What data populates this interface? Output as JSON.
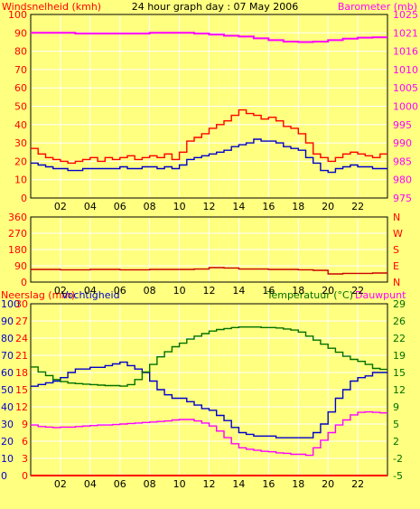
{
  "header": {
    "left_title": "Windsnelheid (kmh)",
    "center_title": "24 hour graph day : 07 May 2006",
    "right_title": "Barometer (mb)"
  },
  "bottom_header": {
    "left_title_a": "Neerslag (mm)",
    "left_title_b": "Vochtigheid",
    "right_title_a": "Temperatuur (°C)",
    "right_title_b": "Dauwpunt"
  },
  "colors": {
    "background": "#ffff80",
    "wind_gust": "#ff0000",
    "wind_avg": "#0000cc",
    "barometer": "#ff00ff",
    "wind_dir": "#cc0000",
    "rain": "#ff0000",
    "humidity": "#0000cc",
    "temperature": "#007000",
    "dewpoint": "#ff00ff",
    "grid": "#ffffff"
  },
  "chart_data": [
    {
      "type": "line",
      "panel": "wind-barometer",
      "x_ticks": [
        "02",
        "04",
        "06",
        "08",
        "10",
        "12",
        "14",
        "16",
        "18",
        "20",
        "22"
      ],
      "xlim": [
        0,
        24
      ],
      "y_left_ticks": [
        "0",
        "10",
        "20",
        "30",
        "40",
        "50",
        "60",
        "70",
        "80",
        "90",
        "100"
      ],
      "ylim_left": [
        0,
        100
      ],
      "y_right_ticks": [
        "975",
        "980",
        "985",
        "990",
        "995",
        "1000",
        "1005",
        "1010",
        "1016",
        "1021",
        "1025"
      ],
      "ylim_right": [
        975,
        1025
      ],
      "series": [
        {
          "key": "gust",
          "x": [
            0,
            0.5,
            1,
            1.5,
            2,
            2.5,
            3,
            3.5,
            4,
            4.5,
            5,
            5.5,
            6,
            6.5,
            7,
            7.5,
            8,
            8.5,
            9,
            9.5,
            10,
            10.5,
            11,
            11.5,
            12,
            12.5,
            13,
            13.5,
            14,
            14.5,
            15,
            15.5,
            16,
            16.5,
            17,
            17.5,
            18,
            18.5,
            19,
            19.5,
            20,
            20.5,
            21,
            21.5,
            22,
            22.5,
            23,
            23.5
          ],
          "values": [
            27,
            24,
            22,
            21,
            20,
            19,
            20,
            21,
            22,
            20,
            22,
            21,
            22,
            23,
            21,
            22,
            23,
            22,
            24,
            21,
            25,
            31,
            33,
            35,
            38,
            40,
            42,
            45,
            48,
            46,
            45,
            43,
            44,
            42,
            39,
            38,
            35,
            30,
            24,
            22,
            20,
            22,
            24,
            25,
            24,
            23,
            22,
            24
          ]
        },
        {
          "key": "avg",
          "x": [
            0,
            0.5,
            1,
            1.5,
            2,
            2.5,
            3,
            3.5,
            4,
            4.5,
            5,
            5.5,
            6,
            6.5,
            7,
            7.5,
            8,
            8.5,
            9,
            9.5,
            10,
            10.5,
            11,
            11.5,
            12,
            12.5,
            13,
            13.5,
            14,
            14.5,
            15,
            15.5,
            16,
            16.5,
            17,
            17.5,
            18,
            18.5,
            19,
            19.5,
            20,
            20.5,
            21,
            21.5,
            22,
            22.5,
            23,
            23.5
          ],
          "values": [
            19,
            18,
            17,
            16,
            16,
            15,
            15,
            16,
            16,
            16,
            16,
            16,
            17,
            16,
            16,
            17,
            17,
            16,
            17,
            16,
            18,
            21,
            22,
            23,
            24,
            25,
            26,
            28,
            29,
            30,
            32,
            31,
            31,
            30,
            28,
            27,
            26,
            22,
            19,
            15,
            14,
            16,
            17,
            18,
            17,
            17,
            16,
            16
          ]
        },
        {
          "key": "barometer",
          "x": [
            0,
            1,
            2,
            3,
            4,
            5,
            6,
            7,
            8,
            9,
            10,
            11,
            12,
            13,
            14,
            15,
            16,
            17,
            18,
            19,
            20,
            21,
            22,
            23,
            23.5
          ],
          "values": [
            1020,
            1020,
            1020,
            1019.8,
            1019.8,
            1019.8,
            1019.8,
            1019.8,
            1020,
            1020,
            1020,
            1019.8,
            1019.5,
            1019.2,
            1019,
            1018.5,
            1018,
            1017.6,
            1017.5,
            1017.6,
            1018,
            1018.4,
            1018.7,
            1018.8,
            1018.8
          ]
        }
      ]
    },
    {
      "type": "line",
      "panel": "wind-direction",
      "x_ticks": [
        "02",
        "04",
        "06",
        "08",
        "10",
        "12",
        "14",
        "16",
        "18",
        "20",
        "22"
      ],
      "xlim": [
        0,
        24
      ],
      "y_left_ticks": [
        "0",
        "90",
        "180",
        "270",
        "360"
      ],
      "ylim_left": [
        0,
        360
      ],
      "y_right_ticks": [
        "N",
        "E",
        "S",
        "W",
        "N"
      ],
      "series": [
        {
          "key": "direction",
          "x": [
            0,
            2,
            4,
            6,
            8,
            10,
            11,
            12,
            13,
            14,
            16,
            18,
            19,
            20,
            21,
            22,
            23,
            23.5
          ],
          "values": [
            70,
            68,
            70,
            68,
            70,
            70,
            72,
            80,
            78,
            72,
            70,
            68,
            65,
            45,
            48,
            48,
            50,
            50
          ]
        }
      ]
    },
    {
      "type": "line",
      "panel": "rain-humidity-temperature",
      "x_ticks": [
        "02",
        "04",
        "06",
        "08",
        "10",
        "12",
        "14",
        "16",
        "18",
        "20",
        "22"
      ],
      "xlim": [
        0,
        24
      ],
      "y_left_ticks": [
        "0",
        "10",
        "20",
        "30",
        "40",
        "50",
        "60",
        "70",
        "80",
        "90",
        "100"
      ],
      "y_left2_ticks": [
        "0",
        "3",
        "6",
        "9",
        "12",
        "15",
        "18",
        "21",
        "24",
        "27",
        "30"
      ],
      "ylim_left": [
        0,
        100
      ],
      "y_right_ticks": [
        "-5",
        "-2",
        "2",
        "5",
        "9",
        "12",
        "15",
        "19",
        "22",
        "26",
        "29"
      ],
      "ylim_right": [
        -5,
        29
      ],
      "series": [
        {
          "key": "rain",
          "x": [
            0,
            23.5
          ],
          "values": [
            0,
            0
          ]
        },
        {
          "key": "humidity",
          "x": [
            0,
            0.5,
            1,
            1.5,
            2,
            2.5,
            3,
            3.5,
            4,
            4.5,
            5,
            5.5,
            6,
            6.5,
            7,
            7.5,
            8,
            8.5,
            9,
            9.5,
            10,
            10.5,
            11,
            11.5,
            12,
            12.5,
            13,
            13.5,
            14,
            14.5,
            15,
            15.5,
            16,
            16.5,
            17,
            17.5,
            18,
            18.5,
            19,
            19.5,
            20,
            20.5,
            21,
            21.5,
            22,
            22.5,
            23,
            23.5
          ],
          "values": [
            52,
            53,
            54,
            55,
            57,
            60,
            62,
            62,
            63,
            63,
            64,
            65,
            66,
            64,
            62,
            60,
            55,
            50,
            47,
            45,
            45,
            43,
            41,
            39,
            38,
            35,
            32,
            28,
            25,
            24,
            23,
            23,
            23,
            22,
            22,
            22,
            22,
            22,
            25,
            30,
            37,
            45,
            50,
            55,
            57,
            58,
            60,
            60
          ]
        },
        {
          "key": "temperature",
          "x": [
            0,
            0.5,
            1,
            1.5,
            2,
            2.5,
            3,
            3.5,
            4,
            4.5,
            5,
            5.5,
            6,
            6.5,
            7,
            7.5,
            8,
            8.5,
            9,
            9.5,
            10,
            10.5,
            11,
            11.5,
            12,
            12.5,
            13,
            13.5,
            14,
            14.5,
            15,
            15.5,
            16,
            16.5,
            17,
            17.5,
            18,
            18.5,
            19,
            19.5,
            20,
            20.5,
            21,
            21.5,
            22,
            22.5,
            23,
            23.5
          ],
          "values": [
            16.5,
            15.5,
            14.8,
            14,
            13.6,
            13.3,
            13.2,
            13.1,
            13,
            12.9,
            12.8,
            12.8,
            12.7,
            13,
            14,
            15.5,
            17,
            18.5,
            19.5,
            20.5,
            21.2,
            22,
            22.6,
            23.1,
            23.6,
            23.9,
            24.1,
            24.3,
            24.4,
            24.4,
            24.4,
            24.3,
            24.3,
            24.2,
            24,
            23.8,
            23.4,
            22.6,
            21.8,
            21,
            20.2,
            19.4,
            18.6,
            18,
            17.6,
            17,
            16.2,
            16
          ]
        },
        {
          "key": "dewpoint",
          "x": [
            0,
            0.5,
            1,
            1.5,
            2,
            2.5,
            3,
            3.5,
            4,
            4.5,
            5,
            5.5,
            6,
            6.5,
            7,
            7.5,
            8,
            8.5,
            9,
            9.5,
            10,
            10.5,
            11,
            11.5,
            12,
            12.5,
            13,
            13.5,
            14,
            14.5,
            15,
            15.5,
            16,
            16.5,
            17,
            17.5,
            18,
            18.5,
            19,
            19.5,
            20,
            20.5,
            21,
            21.5,
            22,
            22.5,
            23,
            23.5
          ],
          "values": [
            5,
            4.7,
            4.6,
            4.5,
            4.6,
            4.6,
            4.7,
            4.8,
            4.9,
            5,
            5,
            5.1,
            5.2,
            5.3,
            5.4,
            5.5,
            5.6,
            5.7,
            5.8,
            6,
            6.1,
            6.1,
            5.8,
            5.4,
            4.8,
            3.8,
            2.5,
            1.3,
            0.5,
            0.2,
            0,
            -0.2,
            -0.3,
            -0.5,
            -0.6,
            -0.8,
            -0.8,
            -1,
            0.5,
            2,
            3.5,
            5,
            6,
            7,
            7.5,
            7.6,
            7.5,
            7.4
          ]
        }
      ]
    }
  ]
}
